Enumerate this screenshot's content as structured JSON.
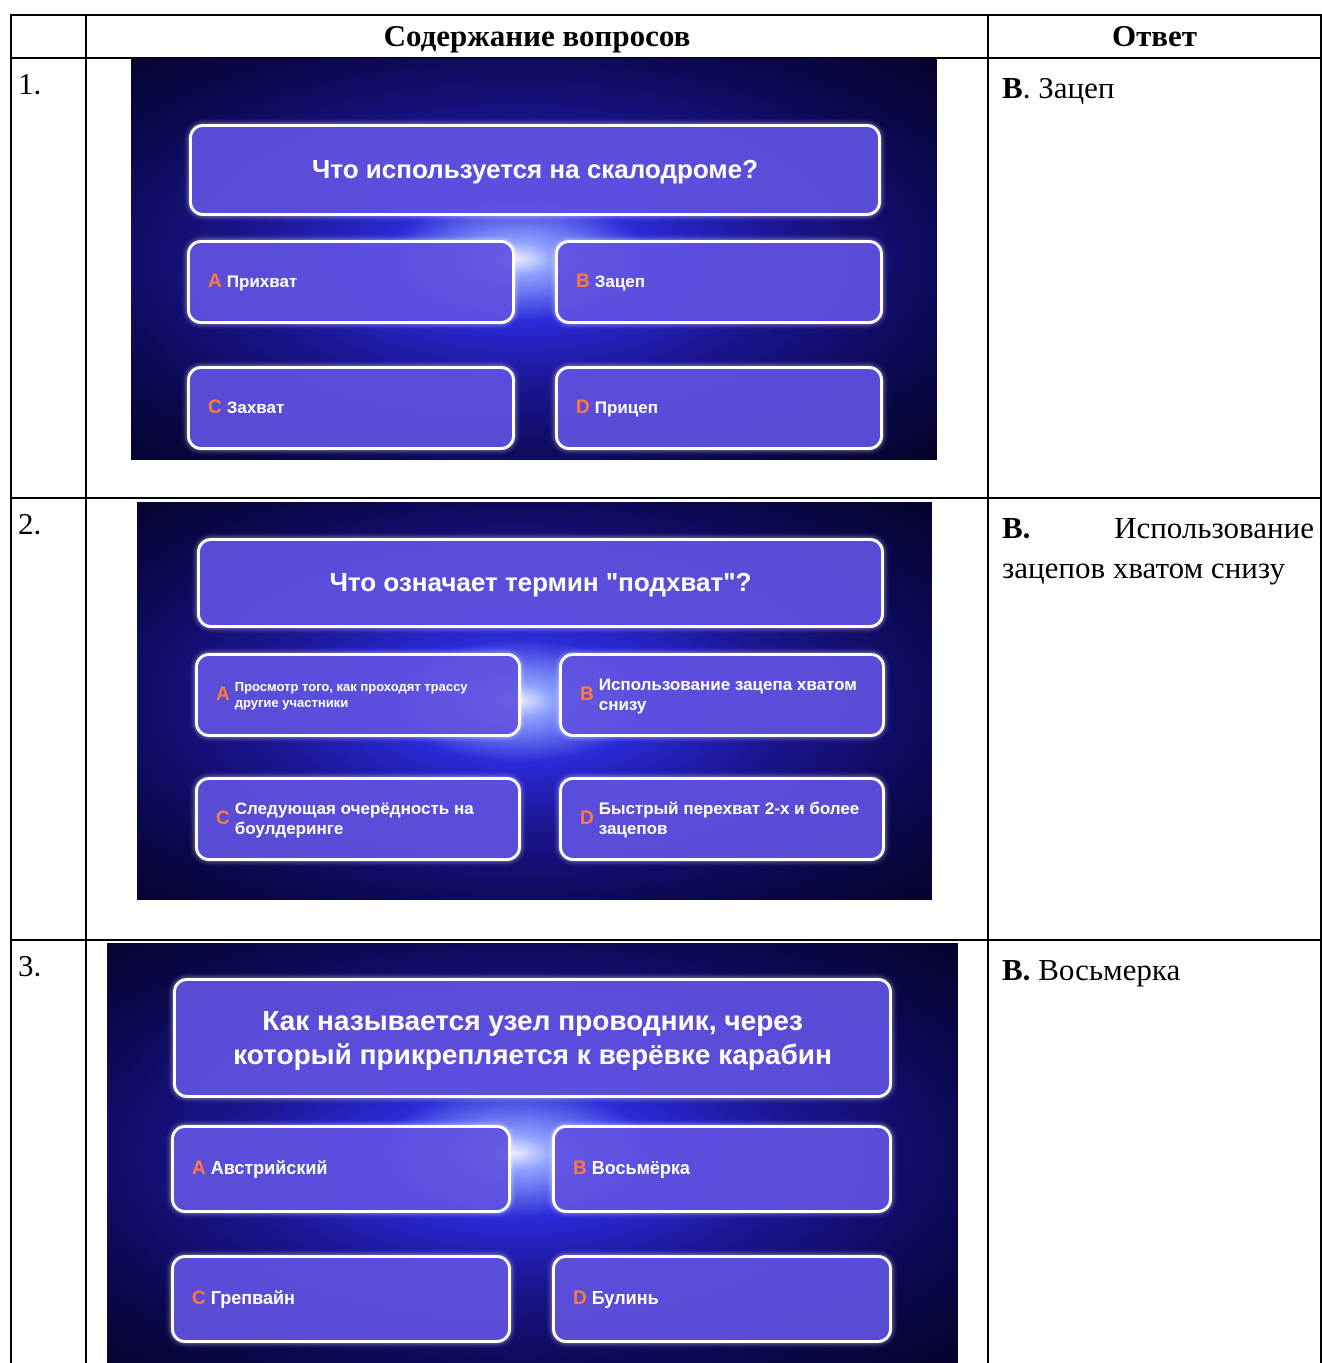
{
  "table": {
    "header": [
      "Содержание вопросов",
      "Ответ"
    ],
    "rows": [
      {
        "number": "1.",
        "slide": {
          "question": "Что используется на скалодроме?",
          "options": [
            {
              "letter": "A",
              "text": "Прихват"
            },
            {
              "letter": "B",
              "text": "Зацеп"
            },
            {
              "letter": "C",
              "text": "Захват"
            },
            {
              "letter": "D",
              "text": "Прицеп"
            }
          ]
        },
        "answer": {
          "letter": "В",
          "text": ". Зацеп"
        }
      },
      {
        "number": "2.",
        "slide": {
          "question": "Что означает термин \"подхват\"?",
          "options": [
            {
              "letter": "A",
              "text": "Просмотр того, как проходят трассу другие участники"
            },
            {
              "letter": "B",
              "text": "Использование зацепа хватом снизу"
            },
            {
              "letter": "C",
              "text": "Следующая очерёдность на боулдеринге"
            },
            {
              "letter": "D",
              "text": "Быстрый перехват 2-х и более зацепов"
            }
          ]
        },
        "answer": {
          "letter": "В.",
          "text": "Использование зацепов хватом снизу"
        }
      },
      {
        "number": "3.",
        "slide": {
          "question": "Как называется узел проводник, через который прикрепляется к верёвке карабин",
          "options": [
            {
              "letter": "A",
              "text": "Австрийский"
            },
            {
              "letter": "B",
              "text": "Восьмёрка"
            },
            {
              "letter": "C",
              "text": "Грепвайн"
            },
            {
              "letter": "D",
              "text": "Булинь"
            }
          ]
        },
        "answer": {
          "letter": "В.",
          "text": "Восьмерка"
        }
      }
    ]
  }
}
